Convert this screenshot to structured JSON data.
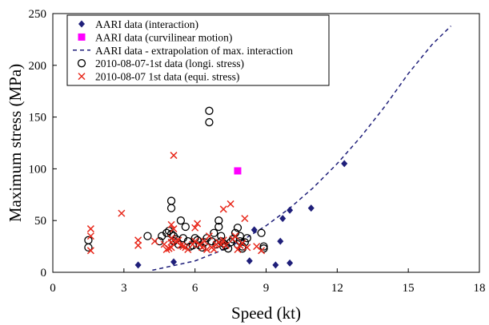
{
  "chart_data": {
    "type": "scatter",
    "xlabel": "Speed (kt)",
    "ylabel": "Maximum stress (MPa)",
    "xlim": [
      0,
      18
    ],
    "ylim": [
      0,
      250
    ],
    "xticks": [
      0,
      3,
      6,
      9,
      12,
      15,
      18
    ],
    "yticks": [
      0,
      50,
      100,
      150,
      200,
      250
    ],
    "grid": false,
    "legend_position": "top-left",
    "series": [
      {
        "name": "AARI data (interaction)",
        "marker": "diamond",
        "color": "#1f1f7a",
        "x": [
          3.6,
          5.1,
          8.3,
          8.5,
          9.4,
          9.6,
          9.7,
          10.0,
          10.0,
          10.9,
          12.3
        ],
        "y": [
          7,
          10,
          11,
          41,
          7,
          30,
          52,
          60,
          9,
          62,
          105
        ]
      },
      {
        "name": "AARI data (curvilinear motion)",
        "marker": "square",
        "color": "#ff00ff",
        "x": [
          7.8
        ],
        "y": [
          98
        ]
      },
      {
        "name": "AARI data - extrapolation of max. interaction",
        "marker": "dashed-line",
        "color": "#1f1f7a",
        "x": [
          4.2,
          6.0,
          7.0,
          8.0,
          9.0,
          10.0,
          11.0,
          12.0,
          13.0,
          14.0,
          15.0,
          16.0,
          16.8
        ],
        "y": [
          2,
          11,
          20,
          31,
          45,
          62,
          82,
          105,
          131,
          160,
          192,
          220,
          238
        ]
      },
      {
        "name": "2010-08-07-1st data (longi. stress)",
        "marker": "circle",
        "color": "#000000",
        "x": [
          1.5,
          1.5,
          4.0,
          4.5,
          4.6,
          4.8,
          4.9,
          5.0,
          5.0,
          5.0,
          5.1,
          5.1,
          5.2,
          5.3,
          5.4,
          5.5,
          5.6,
          5.7,
          5.8,
          5.9,
          6.0,
          6.1,
          6.2,
          6.3,
          6.4,
          6.5,
          6.6,
          6.6,
          6.7,
          6.8,
          6.9,
          7.0,
          7.0,
          7.1,
          7.1,
          7.2,
          7.2,
          7.3,
          7.4,
          7.5,
          7.6,
          7.7,
          7.8,
          7.8,
          7.9,
          7.9,
          8.0,
          8.0,
          8.1,
          8.2,
          8.8,
          8.9,
          8.9
        ],
        "y": [
          24,
          31,
          35,
          30,
          35,
          38,
          40,
          37,
          69,
          62,
          30,
          35,
          32,
          27,
          50,
          33,
          44,
          30,
          25,
          26,
          33,
          31,
          26,
          24,
          29,
          33,
          145,
          156,
          30,
          38,
          27,
          44,
          50,
          30,
          35,
          28,
          25,
          26,
          23,
          29,
          32,
          38,
          43,
          27,
          35,
          30,
          25,
          23,
          29,
          33,
          38,
          25,
          23
        ]
      },
      {
        "name": "2010-08-07 1st data (equi. stress)",
        "marker": "x",
        "color": "#e8291c",
        "x": [
          1.6,
          1.6,
          1.6,
          2.9,
          3.6,
          3.6,
          4.3,
          4.7,
          4.8,
          4.9,
          5.0,
          5.0,
          5.0,
          5.0,
          5.1,
          5.1,
          5.2,
          5.3,
          5.4,
          5.5,
          5.6,
          5.7,
          5.9,
          6.0,
          6.0,
          6.1,
          6.2,
          6.3,
          6.4,
          6.5,
          6.6,
          6.7,
          6.8,
          6.9,
          7.0,
          7.1,
          7.2,
          7.2,
          7.3,
          7.5,
          7.6,
          7.7,
          7.8,
          7.9,
          8.0,
          8.1,
          8.2,
          8.6,
          8.8
        ],
        "y": [
          21,
          35,
          42,
          57,
          26,
          31,
          30,
          27,
          22,
          23,
          24,
          29,
          33,
          46,
          42,
          113,
          30,
          31,
          26,
          25,
          24,
          22,
          27,
          30,
          43,
          47,
          27,
          24,
          30,
          22,
          35,
          24,
          22,
          27,
          29,
          27,
          31,
          61,
          26,
          66,
          32,
          35,
          22,
          26,
          28,
          52,
          24,
          25,
          21
        ]
      }
    ]
  }
}
